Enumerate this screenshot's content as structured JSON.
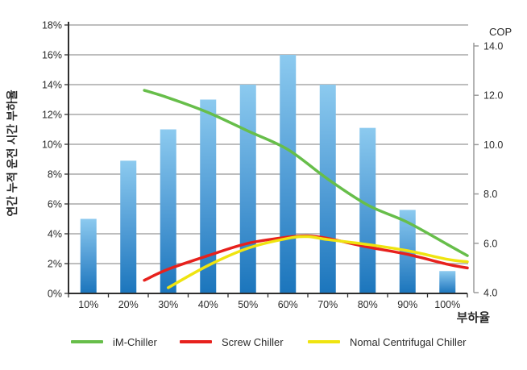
{
  "chart_data": {
    "type": "bar",
    "title": "",
    "xlabel": "부하율",
    "ylabel": "연간 누적 운전 시간 부하율",
    "y2label": "COP",
    "grid": true,
    "legend_position": "bottom",
    "categories": [
      "10%",
      "20%",
      "30%",
      "40%",
      "50%",
      "60%",
      "70%",
      "80%",
      "90%",
      "100%"
    ],
    "bars": {
      "name": "연간 누적 운전 시간 부하율",
      "axis": "left",
      "unit": "%",
      "values": [
        5.0,
        8.9,
        11.0,
        13.0,
        14.0,
        16.0,
        14.0,
        11.1,
        5.6,
        1.5
      ]
    },
    "left_axis": {
      "lim": [
        0,
        18
      ],
      "ticks": [
        "0%",
        "2%",
        "4%",
        "6%",
        "8%",
        "10%",
        "12%",
        "14%",
        "16%",
        "18%"
      ]
    },
    "right_axis": {
      "lim": [
        4,
        14
      ],
      "ticks": [
        "4.0",
        "6.0",
        "8.0",
        "10.0",
        "12.0",
        "14.0"
      ]
    },
    "series": [
      {
        "name": "iM-Chiller",
        "axis": "right",
        "color": "#67be4a",
        "points": [
          [
            24,
            12.2
          ],
          [
            30,
            11.9
          ],
          [
            40,
            11.3
          ],
          [
            50,
            10.55
          ],
          [
            60,
            9.8
          ],
          [
            70,
            8.6
          ],
          [
            80,
            7.55
          ],
          [
            90,
            6.85
          ],
          [
            100,
            5.95
          ],
          [
            105,
            5.5
          ]
        ]
      },
      {
        "name": "Screw Chiller",
        "axis": "right",
        "color": "#e7211d",
        "points": [
          [
            24,
            4.5
          ],
          [
            30,
            4.95
          ],
          [
            40,
            5.5
          ],
          [
            50,
            6.0
          ],
          [
            60,
            6.25
          ],
          [
            65,
            6.3
          ],
          [
            70,
            6.2
          ],
          [
            80,
            5.85
          ],
          [
            90,
            5.55
          ],
          [
            100,
            5.15
          ],
          [
            105,
            5.0
          ]
        ]
      },
      {
        "name": "Nomal Centrifugal Chiller",
        "axis": "right",
        "color": "#efe410",
        "points": [
          [
            30,
            4.2
          ],
          [
            40,
            5.1
          ],
          [
            50,
            5.8
          ],
          [
            60,
            6.2
          ],
          [
            65,
            6.27
          ],
          [
            70,
            6.15
          ],
          [
            80,
            5.95
          ],
          [
            90,
            5.7
          ],
          [
            100,
            5.35
          ],
          [
            105,
            5.25
          ]
        ]
      }
    ]
  },
  "legend": {
    "items": [
      {
        "label": "iM-Chiller",
        "color": "#67be4a"
      },
      {
        "label": "Screw Chiller",
        "color": "#e7211d"
      },
      {
        "label": "Nomal Centrifugal Chiller",
        "color": "#efe410"
      }
    ]
  },
  "colors": {
    "bar_top": "#8ccaef",
    "bar_mid": "#4e9ad4",
    "bar_bottom": "#1b75bc",
    "gridline": "#a9a9a9",
    "axis": "#2f2f2f",
    "right_axis": "#9b9b9b",
    "text": "#2b2b2b"
  }
}
